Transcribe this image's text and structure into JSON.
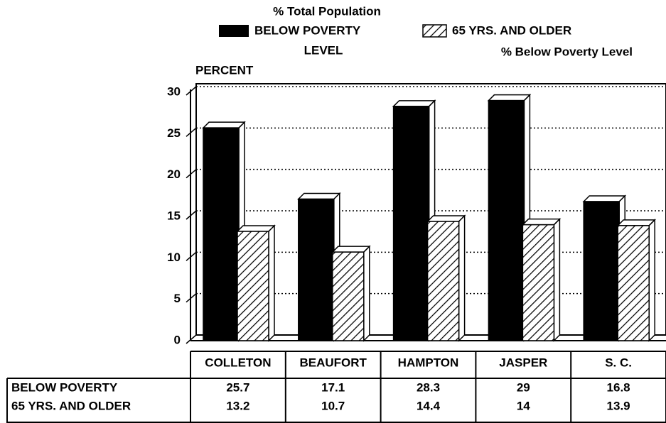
{
  "chart_data": {
    "type": "bar",
    "legend_notes": [
      "% Total Population",
      "LEVEL",
      "% Below Poverty Level"
    ],
    "ylabel": "PERCENT",
    "categories": [
      "COLLETON",
      "BEAUFORT",
      "HAMPTON",
      "JASPER",
      "S. C."
    ],
    "series": [
      {
        "name": "BELOW POVERTY",
        "color": "#000000",
        "pattern": "solid",
        "values": [
          25.7,
          17.1,
          28.3,
          29,
          16.8
        ]
      },
      {
        "name": "65 YRS. AND OLDER",
        "color": "#000000",
        "pattern": "hatch",
        "values": [
          13.2,
          10.7,
          14.4,
          14,
          13.9
        ]
      }
    ],
    "ylim": [
      0,
      30
    ],
    "yticks": [
      0,
      5,
      10,
      15,
      20,
      25,
      30
    ],
    "grid": true
  }
}
